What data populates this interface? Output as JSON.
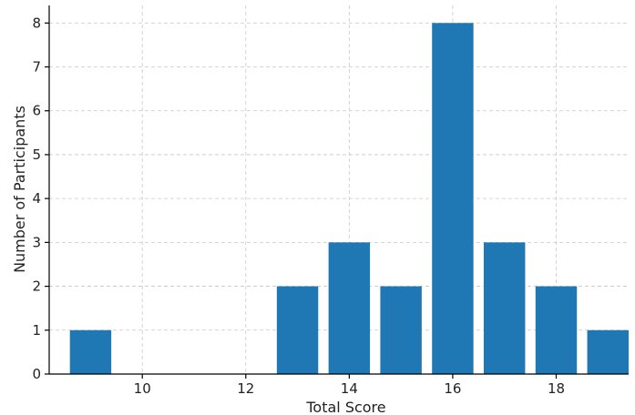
{
  "chart_data": {
    "type": "bar",
    "title": "",
    "xlabel": "Total Score",
    "ylabel": "Number of Participants",
    "x": [
      9,
      13,
      14,
      15,
      16,
      17,
      18,
      19
    ],
    "values": [
      1,
      2,
      3,
      2,
      8,
      3,
      2,
      1
    ],
    "bar_width": 0.8,
    "xlim": [
      8.2,
      19.4
    ],
    "ylim": [
      0,
      8.4
    ],
    "xticks": [
      10,
      12,
      14,
      16,
      18
    ],
    "yticks": [
      0,
      1,
      2,
      3,
      4,
      5,
      6,
      7,
      8
    ],
    "grid": true,
    "bar_color": "#1f77b4"
  }
}
